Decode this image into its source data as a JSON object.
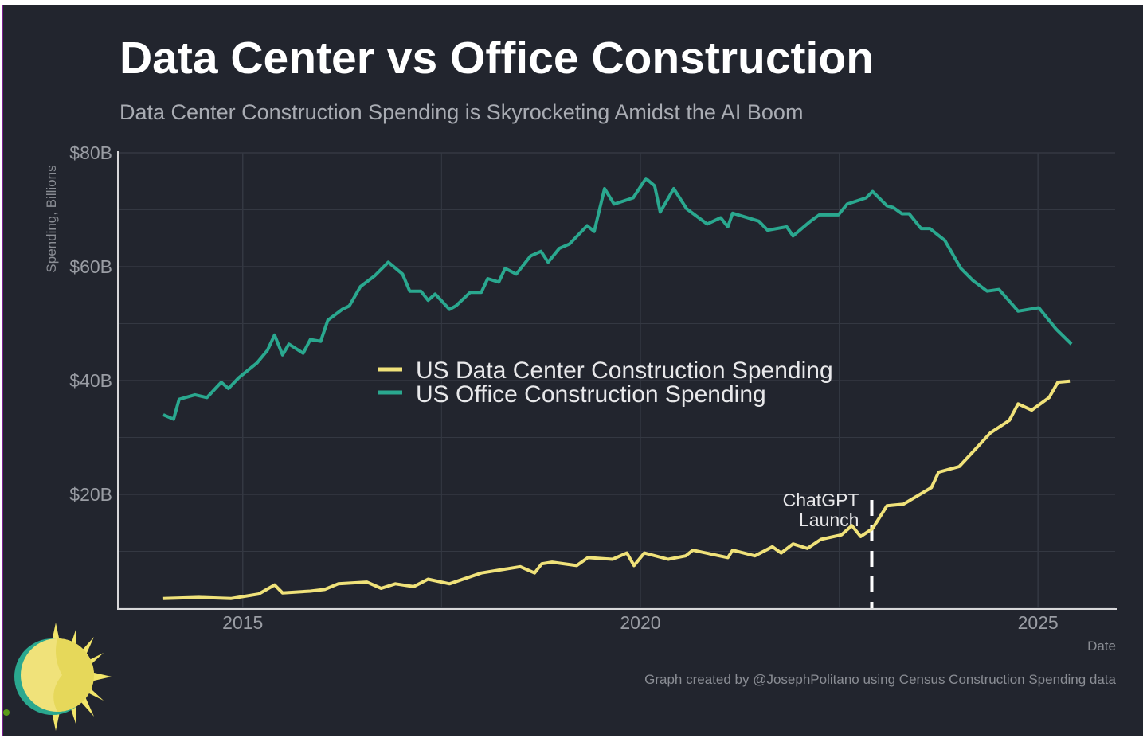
{
  "title": "Data Center vs Office Construction",
  "subtitle": "Data Center Construction Spending is Skyrocketing Amidst the AI Boom",
  "caption": "Graph created by @JosephPolitano using Census Construction Spending data",
  "logo": "sun-eclipse-logo",
  "colors": {
    "background": "#22252e",
    "data_center": "#f0e27a",
    "office": "#2aa88f",
    "text": "#ffffff",
    "grid": "#343842"
  },
  "chart_data": {
    "type": "line",
    "xlabel": "Date",
    "ylabel": "Spending, Billions",
    "xlim": [
      2013.43,
      2025.97
    ],
    "ylim": [
      0,
      80
    ],
    "x_ticks": [
      {
        "value": 2015,
        "label": "2015"
      },
      {
        "value": 2020,
        "label": "2020"
      },
      {
        "value": 2025,
        "label": "2025"
      }
    ],
    "y_ticks": [
      {
        "value": 20,
        "label": "$20B"
      },
      {
        "value": 40,
        "label": "$40B"
      },
      {
        "value": 60,
        "label": "$60B"
      },
      {
        "value": 80,
        "label": "$80B"
      }
    ],
    "grid": true,
    "legend_position": "center",
    "series": [
      {
        "name": "US Data Center Construction Spending",
        "color": "#f0e27a",
        "points": [
          [
            2014.0,
            1.7
          ],
          [
            2014.45,
            1.9
          ],
          [
            2014.85,
            1.7
          ],
          [
            2015.2,
            2.5
          ],
          [
            2015.4,
            4.1
          ],
          [
            2015.5,
            2.7
          ],
          [
            2015.85,
            3.0
          ],
          [
            2016.03,
            3.3
          ],
          [
            2016.2,
            4.3
          ],
          [
            2016.56,
            4.6
          ],
          [
            2016.74,
            3.5
          ],
          [
            2016.92,
            4.3
          ],
          [
            2017.15,
            3.8
          ],
          [
            2017.33,
            5.1
          ],
          [
            2017.6,
            4.3
          ],
          [
            2018.0,
            6.2
          ],
          [
            2018.49,
            7.3
          ],
          [
            2018.67,
            6.2
          ],
          [
            2018.76,
            7.8
          ],
          [
            2018.89,
            8.1
          ],
          [
            2019.2,
            7.5
          ],
          [
            2019.34,
            8.9
          ],
          [
            2019.65,
            8.6
          ],
          [
            2019.83,
            9.7
          ],
          [
            2019.92,
            7.5
          ],
          [
            2020.05,
            9.7
          ],
          [
            2020.35,
            8.6
          ],
          [
            2020.57,
            9.2
          ],
          [
            2020.66,
            10.2
          ],
          [
            2021.1,
            8.9
          ],
          [
            2021.16,
            10.2
          ],
          [
            2021.44,
            9.2
          ],
          [
            2021.66,
            10.8
          ],
          [
            2021.77,
            9.7
          ],
          [
            2021.92,
            11.3
          ],
          [
            2022.1,
            10.5
          ],
          [
            2022.27,
            12.1
          ],
          [
            2022.53,
            12.9
          ],
          [
            2022.66,
            14.5
          ],
          [
            2022.77,
            12.6
          ],
          [
            2022.92,
            14.0
          ],
          [
            2023.1,
            18.0
          ],
          [
            2023.31,
            18.3
          ],
          [
            2023.66,
            21.2
          ],
          [
            2023.75,
            23.9
          ],
          [
            2024.01,
            24.9
          ],
          [
            2024.23,
            28.2
          ],
          [
            2024.4,
            30.8
          ],
          [
            2024.64,
            33.0
          ],
          [
            2024.75,
            35.9
          ],
          [
            2024.92,
            34.8
          ],
          [
            2025.14,
            37.0
          ],
          [
            2025.25,
            39.7
          ],
          [
            2025.4,
            39.9
          ]
        ]
      },
      {
        "name": "US Office Construction Spending",
        "color": "#2aa88f",
        "points": [
          [
            2014.0,
            34.0
          ],
          [
            2014.13,
            33.2
          ],
          [
            2014.2,
            36.7
          ],
          [
            2014.4,
            37.5
          ],
          [
            2014.55,
            37.0
          ],
          [
            2014.73,
            39.7
          ],
          [
            2014.82,
            38.6
          ],
          [
            2014.95,
            40.5
          ],
          [
            2015.18,
            43.1
          ],
          [
            2015.31,
            45.3
          ],
          [
            2015.4,
            48.0
          ],
          [
            2015.5,
            44.5
          ],
          [
            2015.58,
            46.4
          ],
          [
            2015.76,
            44.8
          ],
          [
            2015.85,
            47.2
          ],
          [
            2015.98,
            46.9
          ],
          [
            2016.07,
            50.6
          ],
          [
            2016.25,
            52.5
          ],
          [
            2016.34,
            53.1
          ],
          [
            2016.48,
            56.5
          ],
          [
            2016.66,
            58.4
          ],
          [
            2016.83,
            60.8
          ],
          [
            2017.01,
            58.7
          ],
          [
            2017.1,
            55.7
          ],
          [
            2017.24,
            55.7
          ],
          [
            2017.33,
            54.1
          ],
          [
            2017.42,
            55.2
          ],
          [
            2017.6,
            52.5
          ],
          [
            2017.68,
            53.1
          ],
          [
            2017.86,
            55.5
          ],
          [
            2018.0,
            55.5
          ],
          [
            2018.08,
            57.9
          ],
          [
            2018.22,
            57.3
          ],
          [
            2018.3,
            59.7
          ],
          [
            2018.44,
            58.7
          ],
          [
            2018.62,
            61.9
          ],
          [
            2018.75,
            62.7
          ],
          [
            2018.84,
            60.8
          ],
          [
            2018.98,
            63.2
          ],
          [
            2019.11,
            64.0
          ],
          [
            2019.33,
            67.2
          ],
          [
            2019.42,
            66.2
          ],
          [
            2019.55,
            73.7
          ],
          [
            2019.67,
            71.0
          ],
          [
            2019.91,
            72.1
          ],
          [
            2020.07,
            75.5
          ],
          [
            2020.18,
            74.2
          ],
          [
            2020.25,
            69.6
          ],
          [
            2020.42,
            73.7
          ],
          [
            2020.58,
            70.2
          ],
          [
            2020.84,
            67.5
          ],
          [
            2021.01,
            68.6
          ],
          [
            2021.1,
            67.0
          ],
          [
            2021.16,
            69.4
          ],
          [
            2021.49,
            68.0
          ],
          [
            2021.6,
            66.4
          ],
          [
            2021.84,
            67.0
          ],
          [
            2021.92,
            65.4
          ],
          [
            2022.14,
            68.0
          ],
          [
            2022.25,
            69.1
          ],
          [
            2022.49,
            69.1
          ],
          [
            2022.6,
            71.0
          ],
          [
            2022.84,
            72.1
          ],
          [
            2022.92,
            73.2
          ],
          [
            2023.1,
            70.7
          ],
          [
            2023.18,
            70.4
          ],
          [
            2023.29,
            69.3
          ],
          [
            2023.38,
            69.3
          ],
          [
            2023.53,
            66.7
          ],
          [
            2023.64,
            66.7
          ],
          [
            2023.83,
            64.6
          ],
          [
            2024.03,
            59.7
          ],
          [
            2024.18,
            57.6
          ],
          [
            2024.36,
            55.7
          ],
          [
            2024.51,
            56.0
          ],
          [
            2024.75,
            52.2
          ],
          [
            2025.01,
            52.8
          ],
          [
            2025.23,
            49.0
          ],
          [
            2025.42,
            46.4
          ]
        ]
      }
    ],
    "annotations": [
      {
        "x": 2022.91,
        "lines": [
          "ChatGPT",
          "Launch"
        ],
        "style": "dashed-vertical"
      }
    ]
  }
}
